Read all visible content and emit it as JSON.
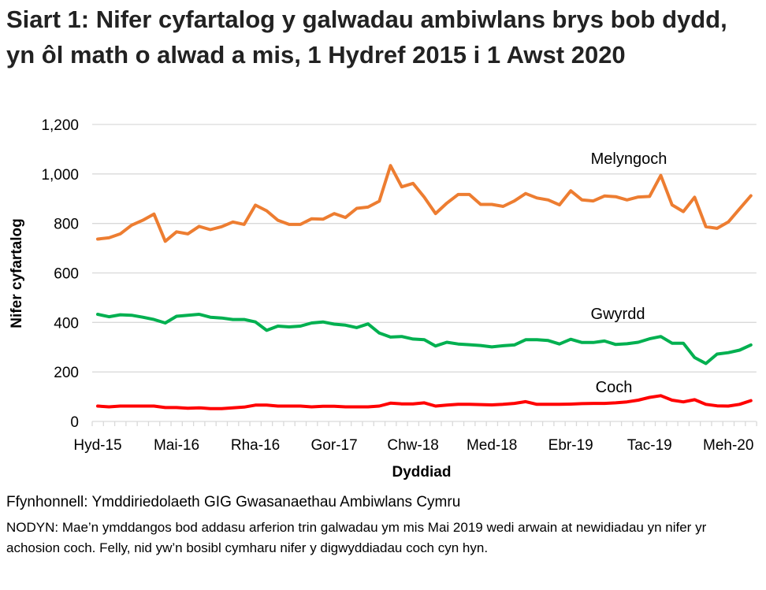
{
  "title": "Siart 1: Nifer cyfartalog y galwadau ambiwlans brys bob dydd, yn ôl math o alwad a mis, 1 Hydref 2015 i 1 Awst 2020",
  "source": "Ffynhonnell: Ymddiriedolaeth GIG Gwasanaethau Ambiwlans Cymru",
  "note": "NODYN: Mae’n ymddangos bod addasu arferion trin galwadau ym mis Mai 2019 wedi arwain at newidiadau yn nifer yr achosion coch. Felly, nid yw’n bosibl cymharu nifer y digwyddiadau coch cyn hyn.",
  "chart_data": {
    "type": "line",
    "xlabel": "Dyddiad",
    "ylabel": "Nifer cyfartalog",
    "ylim": [
      0,
      1200
    ],
    "yticks": [
      "0",
      "200",
      "400",
      "600",
      "800",
      "1,000",
      "1,200"
    ],
    "grid": true,
    "x_start": "Hyd-15",
    "x_end": "Aws-20",
    "xtick_labels": [
      "Hyd-15",
      "Mai-16",
      "Rha-16",
      "Gor-17",
      "Chw-18",
      "Med-18",
      "Ebr-19",
      "Tac-19",
      "Meh-20"
    ],
    "series": [
      {
        "name": "Melyngoch",
        "color": "#ED7D31",
        "values": [
          737,
          742,
          758,
          793,
          813,
          838,
          728,
          766,
          758,
          788,
          775,
          787,
          806,
          796,
          874,
          851,
          813,
          796,
          796,
          819,
          817,
          840,
          824,
          861,
          866,
          890,
          1034,
          948,
          962,
          906,
          840,
          882,
          917,
          917,
          877,
          877,
          869,
          891,
          921,
          903,
          895,
          875,
          932,
          895,
          891,
          911,
          908,
          895,
          907,
          909,
          994,
          875,
          848,
          906,
          787,
          780,
          806,
          859,
          912
        ]
      },
      {
        "name": "Gwyrdd",
        "color": "#00B050",
        "values": [
          433,
          423,
          431,
          429,
          421,
          412,
          398,
          425,
          429,
          433,
          421,
          418,
          412,
          412,
          402,
          368,
          385,
          382,
          385,
          398,
          402,
          393,
          389,
          379,
          394,
          357,
          341,
          343,
          333,
          330,
          305,
          320,
          313,
          310,
          307,
          301,
          306,
          309,
          330,
          330,
          327,
          313,
          332,
          319,
          319,
          325,
          311,
          314,
          320,
          334,
          343,
          316,
          316,
          258,
          234,
          272,
          278,
          288,
          309
        ]
      },
      {
        "name": "Coch",
        "color": "#FF0000",
        "values": [
          62,
          59,
          62,
          62,
          62,
          62,
          56,
          56,
          53,
          55,
          52,
          52,
          55,
          58,
          66,
          66,
          62,
          62,
          62,
          59,
          61,
          61,
          59,
          59,
          59,
          62,
          74,
          71,
          71,
          75,
          62,
          66,
          69,
          69,
          68,
          67,
          69,
          73,
          80,
          69,
          69,
          69,
          70,
          72,
          73,
          73,
          75,
          79,
          86,
          97,
          104,
          86,
          79,
          88,
          69,
          63,
          62,
          69,
          84
        ]
      }
    ]
  }
}
